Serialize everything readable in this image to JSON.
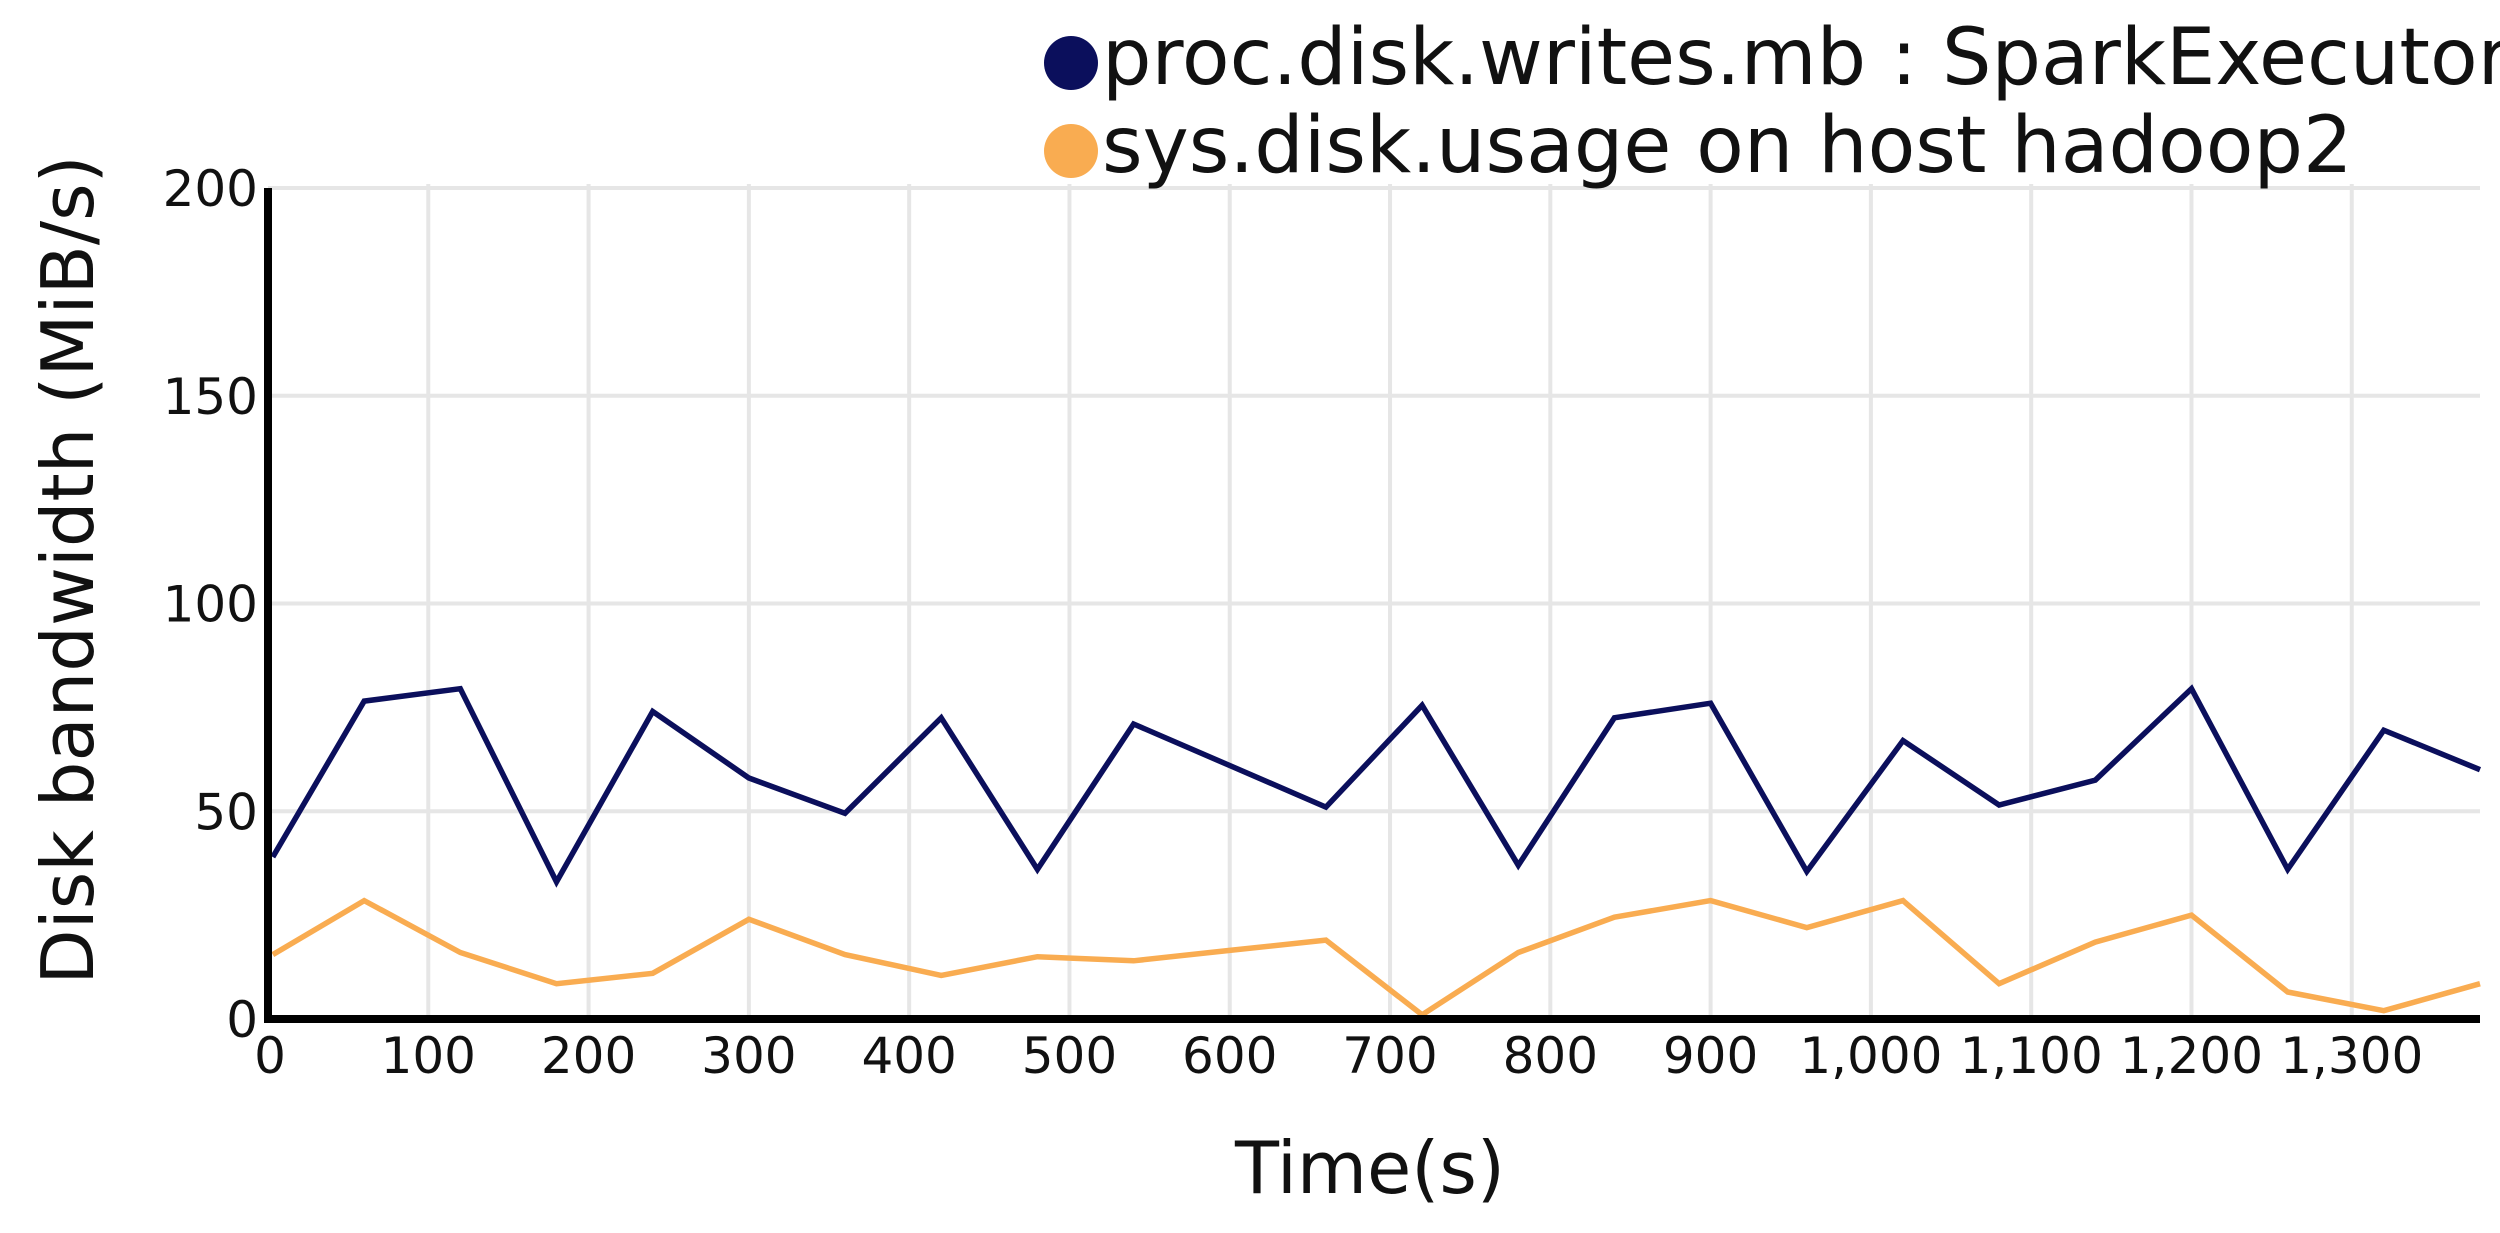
{
  "chart_data": {
    "type": "line",
    "title": "",
    "xlabel": "Time(s)",
    "ylabel": "Disk bandwidth (MiB/s)",
    "xlim": [
      0,
      1380
    ],
    "ylim": [
      0,
      200
    ],
    "x_ticks": [
      0,
      100,
      200,
      300,
      400,
      500,
      600,
      700,
      800,
      900,
      1000,
      1100,
      1200,
      1300
    ],
    "x_tick_labels": [
      "0",
      "100",
      "200",
      "300",
      "400",
      "500",
      "600",
      "700",
      "800",
      "900",
      "1,000",
      "1,100",
      "1,200",
      "1,300"
    ],
    "y_ticks": [
      0,
      50,
      100,
      150,
      200
    ],
    "y_tick_labels": [
      "0",
      "50",
      "100",
      "150",
      "200"
    ],
    "grid": true,
    "legend_position": "top-right",
    "x": [
      3,
      60,
      120,
      180,
      240,
      300,
      360,
      420,
      480,
      540,
      600,
      660,
      720,
      780,
      840,
      900,
      960,
      1020,
      1080,
      1140,
      1200,
      1260,
      1320,
      1380
    ],
    "series": [
      {
        "name": "proc.disk.writes.mb : SparkExecutors",
        "color": "#0b0f5c",
        "values": [
          39,
          76.5,
          79.5,
          33,
          74,
          58,
          49.5,
          72.5,
          36,
          71,
          61,
          51,
          75.5,
          37,
          72.5,
          76,
          35.5,
          67,
          51.5,
          57.5,
          79.5,
          36,
          69.5,
          60
        ]
      },
      {
        "name": "sys.disk.usage on host hadoop2",
        "color": "#f9ac51",
        "values": [
          15.5,
          28.5,
          16,
          8.5,
          11,
          24,
          15.5,
          10.5,
          15,
          14,
          16.5,
          19,
          1,
          16,
          24.5,
          28.5,
          22,
          28.5,
          8.5,
          18.5,
          25,
          6.5,
          2,
          8.5
        ]
      }
    ]
  }
}
